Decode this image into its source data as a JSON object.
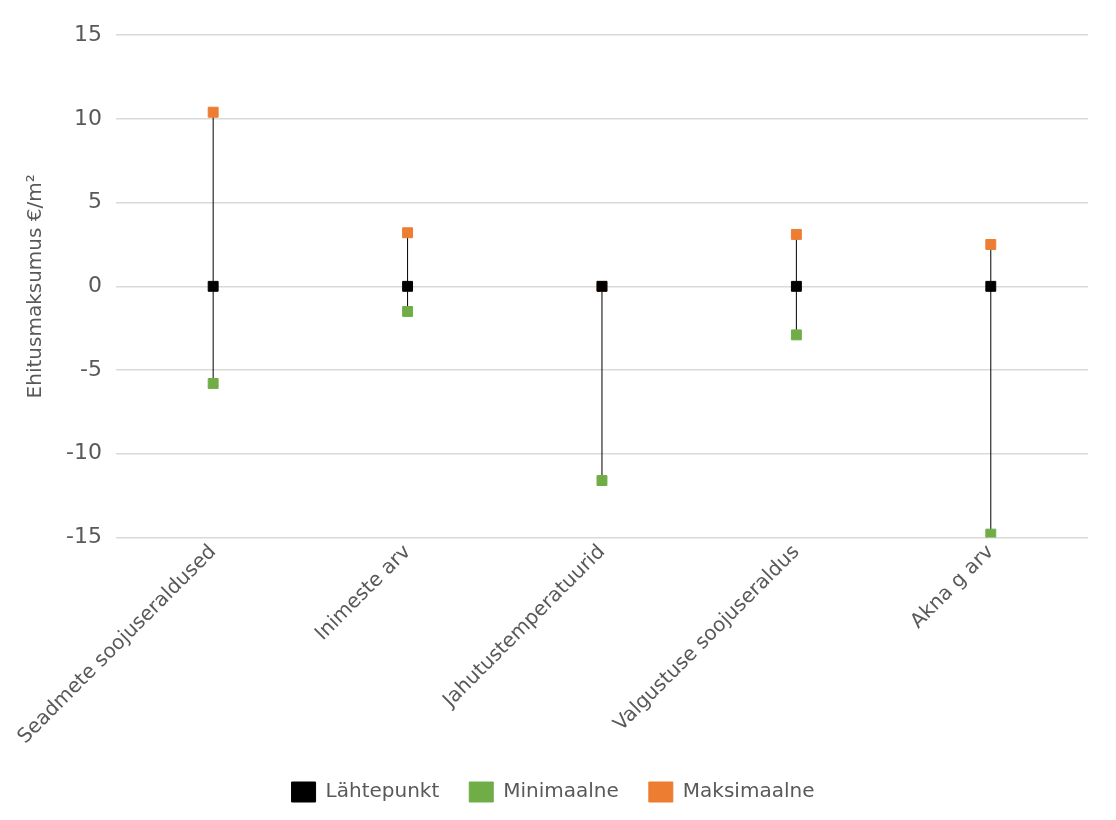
{
  "chart_data": {
    "type": "scatter",
    "ylabel": "Ehitusmaksumus €/m²",
    "categories": [
      "Seadmete soojuseraldused",
      "Inimeste arv",
      "Jahutustemperatuurid",
      "Valgustuse soojuseraldus",
      "Akna g arv"
    ],
    "series": [
      {
        "name": "Lähtepunkt",
        "color": "#000000",
        "values": [
          0,
          0,
          0,
          0,
          0
        ]
      },
      {
        "name": "Minimaalne",
        "color": "#70ad47",
        "values": [
          -5.8,
          -1.5,
          -11.6,
          -2.9,
          -14.8
        ]
      },
      {
        "name": "Maksimaalne",
        "color": "#ed7d31",
        "values": [
          10.4,
          3.2,
          0,
          3.1,
          2.5
        ]
      }
    ],
    "ylim": [
      -15,
      15
    ],
    "yticks": [
      -15,
      -10,
      -5,
      0,
      5,
      10,
      15
    ],
    "grid": "y",
    "legend": "bottom",
    "marker": "square"
  }
}
